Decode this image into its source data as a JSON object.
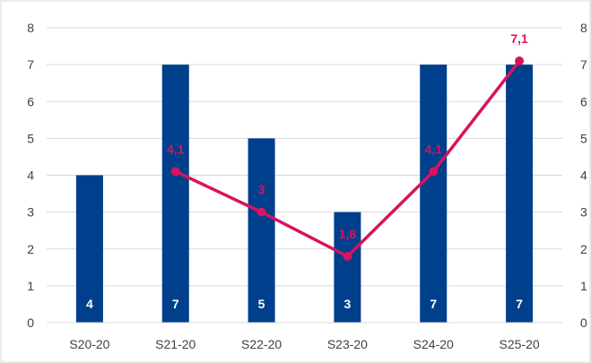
{
  "chart_data": {
    "type": "bar",
    "categories": [
      "S20-20",
      "S21-20",
      "S22-20",
      "S23-20",
      "S24-20",
      "S25-20"
    ],
    "series": [
      {
        "type": "bar",
        "values": [
          4,
          7,
          5,
          3,
          7,
          7
        ],
        "data_labels": [
          "4",
          "7",
          "5",
          "3",
          "7",
          "7"
        ],
        "color": "#003f8c"
      },
      {
        "type": "line",
        "values": [
          null,
          4.1,
          3,
          1.8,
          4.1,
          7.1
        ],
        "data_labels": [
          "",
          "4,1",
          "3",
          "1,8",
          "4,1",
          "7,1"
        ],
        "color": "#d6145f"
      }
    ],
    "ylim": [
      0,
      8
    ],
    "y_ticks": [
      "0",
      "1",
      "2",
      "3",
      "4",
      "5",
      "6",
      "7",
      "8"
    ],
    "y2lim": [
      0,
      8
    ],
    "y2_ticks": [
      "0",
      "1",
      "2",
      "3",
      "4",
      "5",
      "6",
      "7",
      "8"
    ],
    "grid": true,
    "legend": "none"
  }
}
